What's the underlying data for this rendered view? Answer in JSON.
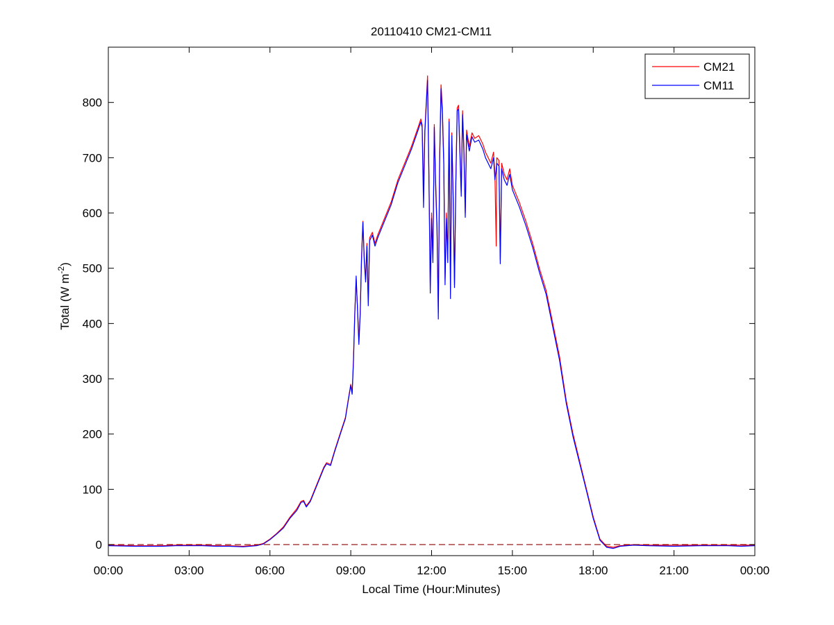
{
  "chart_data": {
    "type": "line",
    "title": "20110410 CM21-CM11",
    "xlabel": "Local Time (Hour:Minutes)",
    "ylabel_main": "Total (W m",
    "ylabel_sup": "-2",
    "ylabel_close": ")",
    "xlim": [
      0,
      24
    ],
    "ylim": [
      -20,
      900
    ],
    "x_ticks": [
      0,
      3,
      6,
      9,
      12,
      15,
      18,
      21,
      24
    ],
    "x_tick_labels": [
      "00:00",
      "03:00",
      "06:00",
      "09:00",
      "12:00",
      "15:00",
      "18:00",
      "21:00",
      "00:00"
    ],
    "y_ticks": [
      0,
      100,
      200,
      300,
      400,
      500,
      600,
      700,
      800
    ],
    "y_tick_labels": [
      "0",
      "100",
      "200",
      "300",
      "400",
      "500",
      "600",
      "700",
      "800"
    ],
    "grid": false,
    "legend": "top-right",
    "reference_line": {
      "y": 0,
      "style": "dashed",
      "color": "#8b0000"
    },
    "series": [
      {
        "name": "CM21",
        "color": "#ff0000",
        "points": [
          [
            0.0,
            -1
          ],
          [
            1.0,
            -2
          ],
          [
            2.0,
            -2
          ],
          [
            2.5,
            -1
          ],
          [
            3.0,
            -1
          ],
          [
            3.5,
            -1
          ],
          [
            4.0,
            -2
          ],
          [
            4.5,
            -2
          ],
          [
            5.0,
            -3
          ],
          [
            5.5,
            -1
          ],
          [
            5.75,
            2
          ],
          [
            6.0,
            10
          ],
          [
            6.25,
            20
          ],
          [
            6.5,
            32
          ],
          [
            6.75,
            50
          ],
          [
            7.0,
            65
          ],
          [
            7.15,
            78
          ],
          [
            7.25,
            80
          ],
          [
            7.35,
            70
          ],
          [
            7.5,
            80
          ],
          [
            7.75,
            110
          ],
          [
            8.0,
            140
          ],
          [
            8.1,
            148
          ],
          [
            8.25,
            145
          ],
          [
            8.4,
            170
          ],
          [
            8.6,
            200
          ],
          [
            8.8,
            230
          ],
          [
            8.9,
            260
          ],
          [
            9.0,
            290
          ],
          [
            9.05,
            275
          ],
          [
            9.1,
            335
          ],
          [
            9.15,
            420
          ],
          [
            9.2,
            480
          ],
          [
            9.25,
            430
          ],
          [
            9.3,
            370
          ],
          [
            9.35,
            420
          ],
          [
            9.4,
            520
          ],
          [
            9.45,
            585
          ],
          [
            9.5,
            520
          ],
          [
            9.55,
            480
          ],
          [
            9.6,
            545
          ],
          [
            9.65,
            440
          ],
          [
            9.7,
            555
          ],
          [
            9.8,
            565
          ],
          [
            9.9,
            545
          ],
          [
            10.0,
            560
          ],
          [
            10.25,
            590
          ],
          [
            10.5,
            620
          ],
          [
            10.75,
            660
          ],
          [
            11.0,
            690
          ],
          [
            11.25,
            720
          ],
          [
            11.5,
            755
          ],
          [
            11.6,
            770
          ],
          [
            11.65,
            760
          ],
          [
            11.7,
            640
          ],
          [
            11.75,
            750
          ],
          [
            11.85,
            848
          ],
          [
            11.9,
            680
          ],
          [
            11.95,
            470
          ],
          [
            12.0,
            600
          ],
          [
            12.05,
            520
          ],
          [
            12.1,
            760
          ],
          [
            12.15,
            660
          ],
          [
            12.2,
            580
          ],
          [
            12.25,
            420
          ],
          [
            12.3,
            700
          ],
          [
            12.35,
            832
          ],
          [
            12.4,
            790
          ],
          [
            12.45,
            700
          ],
          [
            12.5,
            480
          ],
          [
            12.55,
            600
          ],
          [
            12.6,
            520
          ],
          [
            12.65,
            770
          ],
          [
            12.7,
            465
          ],
          [
            12.75,
            745
          ],
          [
            12.8,
            640
          ],
          [
            12.85,
            470
          ],
          [
            12.9,
            660
          ],
          [
            12.95,
            790
          ],
          [
            13.0,
            795
          ],
          [
            13.05,
            720
          ],
          [
            13.1,
            640
          ],
          [
            13.15,
            785
          ],
          [
            13.2,
            720
          ],
          [
            13.25,
            600
          ],
          [
            13.3,
            750
          ],
          [
            13.4,
            720
          ],
          [
            13.5,
            745
          ],
          [
            13.6,
            735
          ],
          [
            13.75,
            740
          ],
          [
            13.9,
            725
          ],
          [
            14.0,
            710
          ],
          [
            14.1,
            700
          ],
          [
            14.2,
            690
          ],
          [
            14.3,
            710
          ],
          [
            14.35,
            670
          ],
          [
            14.4,
            540
          ],
          [
            14.42,
            700
          ],
          [
            14.5,
            695
          ],
          [
            14.55,
            515
          ],
          [
            14.6,
            690
          ],
          [
            14.7,
            670
          ],
          [
            14.8,
            660
          ],
          [
            14.9,
            680
          ],
          [
            15.0,
            650
          ],
          [
            15.25,
            620
          ],
          [
            15.5,
            585
          ],
          [
            15.75,
            545
          ],
          [
            16.0,
            500
          ],
          [
            16.25,
            460
          ],
          [
            16.5,
            400
          ],
          [
            16.75,
            340
          ],
          [
            17.0,
            260
          ],
          [
            17.25,
            200
          ],
          [
            17.5,
            150
          ],
          [
            17.75,
            100
          ],
          [
            18.0,
            50
          ],
          [
            18.25,
            10
          ],
          [
            18.5,
            -3
          ],
          [
            18.75,
            -5
          ],
          [
            19.0,
            -2
          ],
          [
            19.5,
            0
          ],
          [
            20.0,
            -1
          ],
          [
            21.0,
            -1
          ],
          [
            22.0,
            -1
          ],
          [
            23.0,
            -1
          ],
          [
            23.5,
            -1
          ],
          [
            24.0,
            -1
          ]
        ]
      },
      {
        "name": "CM11",
        "color": "#0000ff",
        "points": [
          [
            0.0,
            -2
          ],
          [
            1.0,
            -3
          ],
          [
            2.0,
            -3
          ],
          [
            2.5,
            -2
          ],
          [
            3.0,
            -2
          ],
          [
            3.5,
            -2
          ],
          [
            4.0,
            -3
          ],
          [
            4.5,
            -3
          ],
          [
            5.0,
            -4
          ],
          [
            5.5,
            -2
          ],
          [
            5.75,
            1
          ],
          [
            6.0,
            9
          ],
          [
            6.25,
            19
          ],
          [
            6.5,
            30
          ],
          [
            6.75,
            48
          ],
          [
            7.0,
            62
          ],
          [
            7.15,
            76
          ],
          [
            7.25,
            78
          ],
          [
            7.35,
            68
          ],
          [
            7.5,
            78
          ],
          [
            7.75,
            108
          ],
          [
            8.0,
            138
          ],
          [
            8.1,
            146
          ],
          [
            8.25,
            143
          ],
          [
            8.4,
            168
          ],
          [
            8.6,
            198
          ],
          [
            8.8,
            228
          ],
          [
            8.9,
            258
          ],
          [
            9.0,
            288
          ],
          [
            9.05,
            272
          ],
          [
            9.1,
            330
          ],
          [
            9.15,
            415
          ],
          [
            9.2,
            486
          ],
          [
            9.25,
            425
          ],
          [
            9.3,
            362
          ],
          [
            9.35,
            415
          ],
          [
            9.4,
            515
          ],
          [
            9.45,
            583
          ],
          [
            9.5,
            515
          ],
          [
            9.55,
            475
          ],
          [
            9.6,
            540
          ],
          [
            9.65,
            432
          ],
          [
            9.7,
            550
          ],
          [
            9.8,
            560
          ],
          [
            9.9,
            540
          ],
          [
            10.0,
            555
          ],
          [
            10.25,
            585
          ],
          [
            10.5,
            615
          ],
          [
            10.75,
            655
          ],
          [
            11.0,
            685
          ],
          [
            11.25,
            715
          ],
          [
            11.5,
            750
          ],
          [
            11.6,
            765
          ],
          [
            11.65,
            755
          ],
          [
            11.7,
            610
          ],
          [
            11.75,
            745
          ],
          [
            11.85,
            840
          ],
          [
            11.9,
            670
          ],
          [
            11.95,
            455
          ],
          [
            12.0,
            590
          ],
          [
            12.05,
            510
          ],
          [
            12.1,
            755
          ],
          [
            12.15,
            650
          ],
          [
            12.2,
            570
          ],
          [
            12.25,
            408
          ],
          [
            12.3,
            690
          ],
          [
            12.35,
            825
          ],
          [
            12.4,
            780
          ],
          [
            12.45,
            690
          ],
          [
            12.5,
            470
          ],
          [
            12.55,
            590
          ],
          [
            12.6,
            510
          ],
          [
            12.65,
            765
          ],
          [
            12.7,
            445
          ],
          [
            12.75,
            740
          ],
          [
            12.8,
            630
          ],
          [
            12.85,
            465
          ],
          [
            12.9,
            650
          ],
          [
            12.95,
            785
          ],
          [
            13.0,
            788
          ],
          [
            13.05,
            710
          ],
          [
            13.1,
            630
          ],
          [
            13.15,
            778
          ],
          [
            13.2,
            710
          ],
          [
            13.25,
            592
          ],
          [
            13.3,
            742
          ],
          [
            13.4,
            712
          ],
          [
            13.5,
            738
          ],
          [
            13.6,
            728
          ],
          [
            13.75,
            732
          ],
          [
            13.9,
            716
          ],
          [
            14.0,
            700
          ],
          [
            14.1,
            690
          ],
          [
            14.2,
            680
          ],
          [
            14.3,
            700
          ],
          [
            14.35,
            660
          ],
          [
            14.4,
            680
          ],
          [
            14.42,
            690
          ],
          [
            14.5,
            685
          ],
          [
            14.55,
            508
          ],
          [
            14.6,
            680
          ],
          [
            14.7,
            660
          ],
          [
            14.8,
            650
          ],
          [
            14.9,
            670
          ],
          [
            15.0,
            642
          ],
          [
            15.25,
            612
          ],
          [
            15.5,
            577
          ],
          [
            15.75,
            538
          ],
          [
            16.0,
            493
          ],
          [
            16.25,
            453
          ],
          [
            16.5,
            393
          ],
          [
            16.75,
            333
          ],
          [
            17.0,
            255
          ],
          [
            17.25,
            195
          ],
          [
            17.5,
            146
          ],
          [
            17.75,
            97
          ],
          [
            18.0,
            47
          ],
          [
            18.25,
            8
          ],
          [
            18.5,
            -5
          ],
          [
            18.75,
            -7
          ],
          [
            19.0,
            -3
          ],
          [
            19.5,
            -1
          ],
          [
            20.0,
            -2
          ],
          [
            21.0,
            -3
          ],
          [
            22.0,
            -2
          ],
          [
            23.0,
            -2
          ],
          [
            23.5,
            -3
          ],
          [
            24.0,
            -2
          ]
        ]
      }
    ]
  }
}
